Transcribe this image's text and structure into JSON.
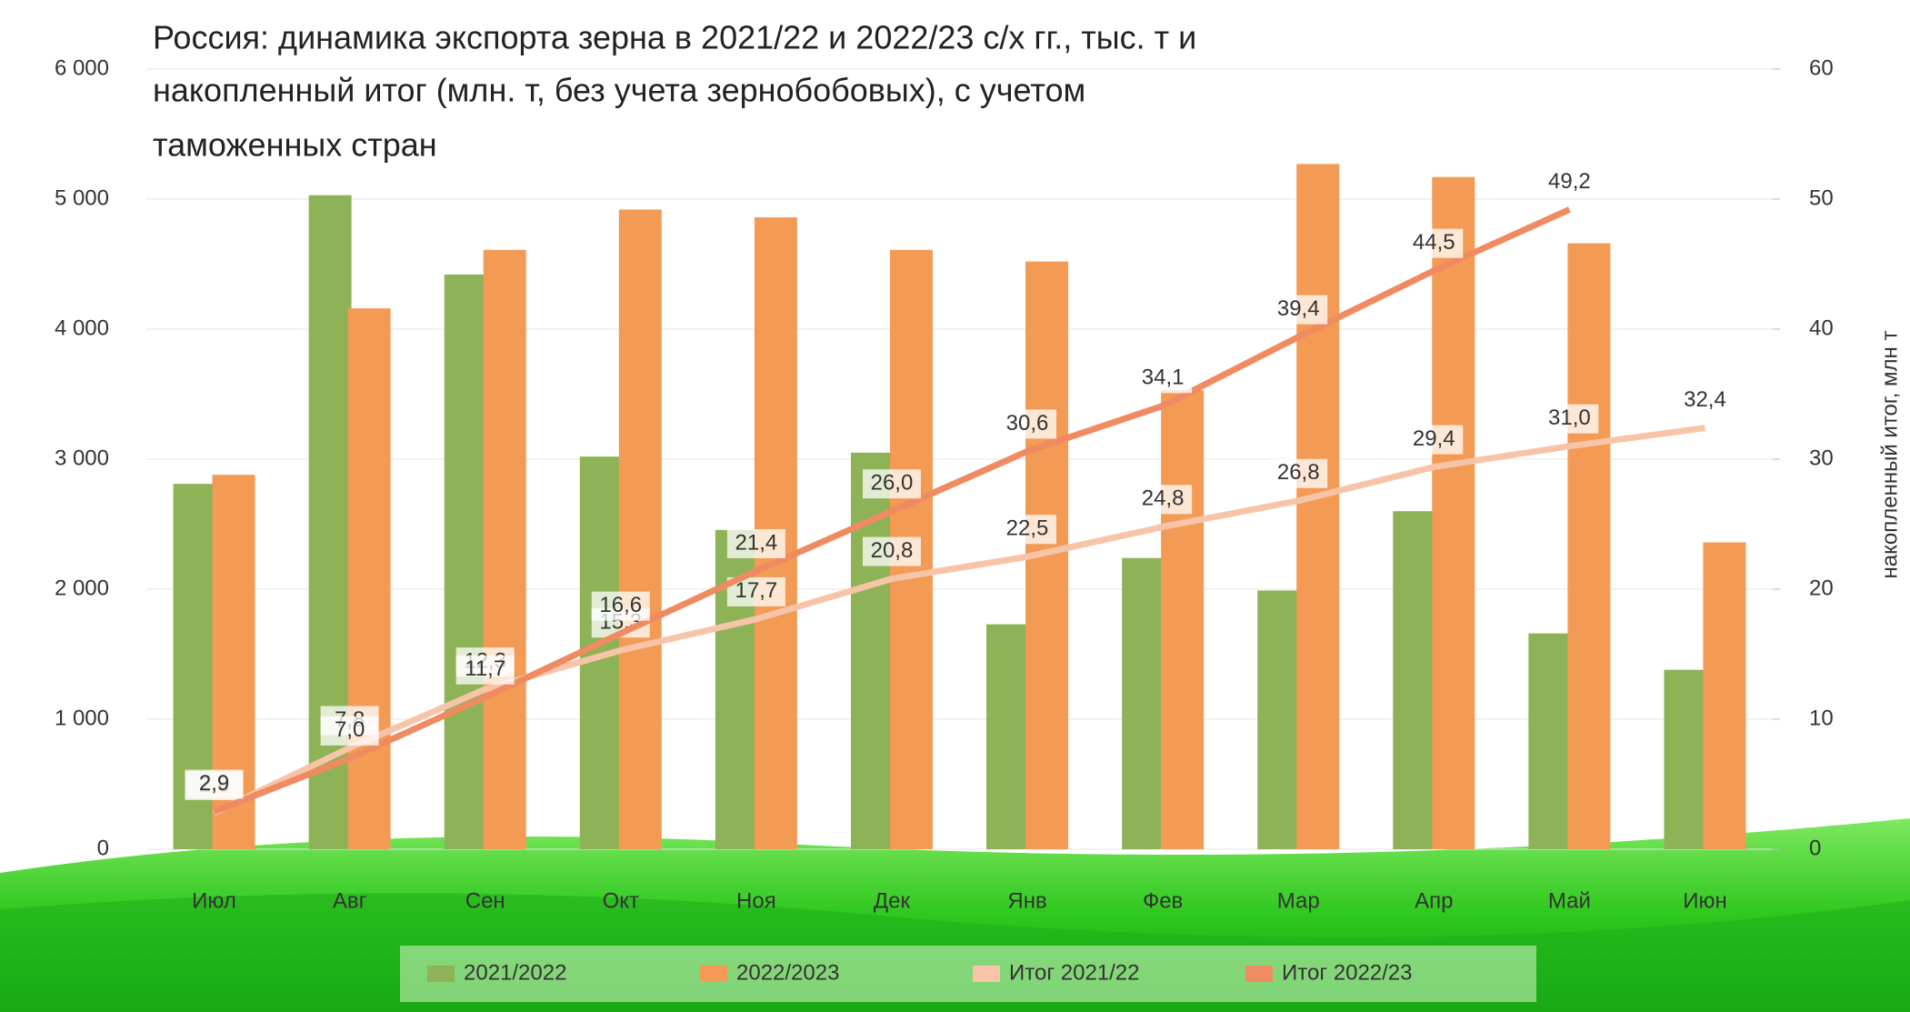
{
  "chart_data": {
    "type": "bar-line",
    "title_lines": [
      "Россия: динамика экспорта зерна в 2021/22 и 2022/23 с/х гг., тыс. т и",
      "накопленный итог (млн. т, без учета зернобобовых), с учетом",
      "таможенных стран"
    ],
    "y2_label": "накопленный итог, млн т",
    "categories": [
      "Июл",
      "Авг",
      "Сен",
      "Окт",
      "Ноя",
      "Дек",
      "Янв",
      "Фев",
      "Мар",
      "Апр",
      "Май",
      "Июн"
    ],
    "series": [
      {
        "name": "2021/2022",
        "color": "#8db356",
        "kind": "bar",
        "values": [
          2810,
          5030,
          4420,
          3020,
          2455,
          3050,
          1730,
          2240,
          1990,
          2600,
          1660,
          1380
        ]
      },
      {
        "name": "2022/2023",
        "color": "#f39a55",
        "kind": "bar",
        "values": [
          2880,
          4160,
          4610,
          4920,
          4860,
          4610,
          4520,
          3530,
          5270,
          5170,
          4660,
          2360
        ]
      },
      {
        "name": "Итог 2021/22",
        "color": "#f8c4a8",
        "kind": "line",
        "axis": "y2",
        "values": [
          2.8,
          7.8,
          12.3,
          15.3,
          17.7,
          20.8,
          22.5,
          24.8,
          26.8,
          29.4,
          31.0,
          32.4
        ],
        "value_labels": [
          "2,8",
          "7,8",
          "12,3",
          "15,3",
          "17,7",
          "20,8",
          "22,5",
          "24,8",
          "26,8",
          "29,4",
          "31,0",
          "32,4"
        ]
      },
      {
        "name": "Итог 2022/23",
        "color": "#f08a60",
        "kind": "line",
        "axis": "y2",
        "values": [
          2.9,
          7.0,
          11.7,
          16.6,
          21.4,
          26.0,
          30.6,
          34.1,
          39.4,
          44.5,
          49.2,
          null
        ],
        "value_labels": [
          "2,9",
          "7,0",
          "11,7",
          "16,6",
          "21,4",
          "26,0",
          "30,6",
          "34,1",
          "39,4",
          "44,5",
          "49,2",
          null
        ]
      }
    ],
    "ylim": [
      0,
      6000
    ],
    "yticks": [
      0,
      {
        "value": 1000,
        "label": "1 000"
      },
      {
        "value": 2000,
        "label": "2 000"
      },
      {
        "value": 3000,
        "label": "3 000"
      },
      {
        "value": 4000,
        "label": "4 000"
      },
      {
        "value": 5000,
        "label": "5 000"
      },
      {
        "value": 6000,
        "label": "6 000"
      }
    ],
    "y2lim": [
      0,
      60
    ],
    "y2ticks": [
      0,
      10,
      20,
      30,
      40,
      50,
      60
    ],
    "grid": true,
    "legend": "bottom"
  }
}
